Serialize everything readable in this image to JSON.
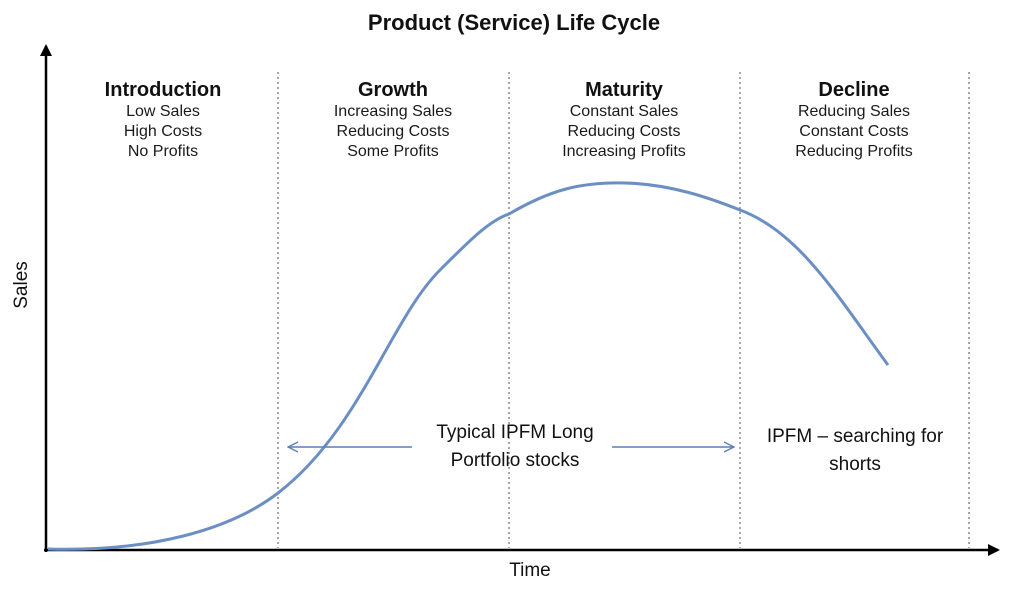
{
  "title": "Product (Service) Life Cycle",
  "axes": {
    "x_label": "Time",
    "y_label": "Sales"
  },
  "stages": [
    {
      "name": "Introduction",
      "lines": [
        "Low Sales",
        "High Costs",
        "No Profits"
      ]
    },
    {
      "name": "Growth",
      "lines": [
        "Increasing Sales",
        "Reducing Costs",
        "Some Profits"
      ]
    },
    {
      "name": "Maturity",
      "lines": [
        "Constant Sales",
        "Reducing Costs",
        "Increasing Profits"
      ]
    },
    {
      "name": "Decline",
      "lines": [
        "Reducing Sales",
        "Constant Costs",
        "Reducing Profits"
      ]
    }
  ],
  "annotations": {
    "long_portfolio": [
      "Typical IPFM Long",
      "Portfolio stocks"
    ],
    "short_search": [
      "IPFM – searching for",
      "shorts"
    ]
  },
  "colors": {
    "curve": "#6b8fc4",
    "arrow": "#5b7fb8",
    "axis": "#000000",
    "divider": "#888888"
  }
}
